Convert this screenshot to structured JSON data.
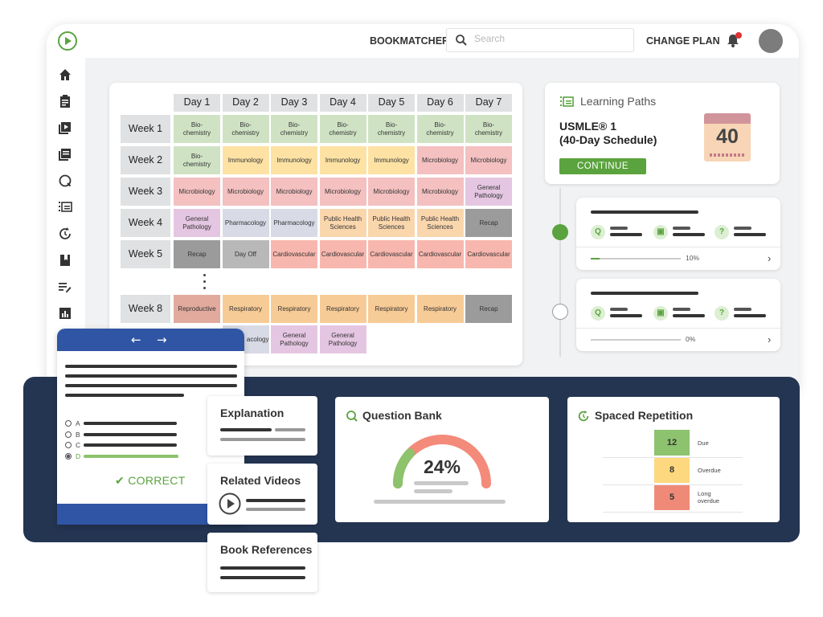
{
  "topbar": {
    "bookmatcher": "BOOKMATCHER",
    "search_placeholder": "Search",
    "change_plan": "CHANGE PLAN",
    "notifications": "1"
  },
  "sidebar": {
    "icons": [
      "home-icon",
      "notes-icon",
      "video-icon",
      "library-icon",
      "question-icon",
      "learning-paths-icon",
      "spaced-repetition-icon",
      "bookmark-icon",
      "edit-list-icon",
      "chart-icon"
    ]
  },
  "schedule": {
    "days": [
      "Day 1",
      "Day 2",
      "Day 3",
      "Day 4",
      "Day 5",
      "Day 6",
      "Day 7"
    ],
    "weeks": [
      {
        "label": "Week 1",
        "cells": [
          [
            "Bio-\nchemistry",
            "bio"
          ],
          [
            "Bio-\nchemistry",
            "bio"
          ],
          [
            "Bio-\nchemistry",
            "bio"
          ],
          [
            "Bio-\nchemistry",
            "bio"
          ],
          [
            "Bio-\nchemistry",
            "bio"
          ],
          [
            "Bio-\nchemistry",
            "bio"
          ],
          [
            "Bio-\nchemistry",
            "bio"
          ]
        ]
      },
      {
        "label": "Week 2",
        "cells": [
          [
            "Bio-\nchemistry",
            "bio"
          ],
          [
            "Immunology",
            "imm"
          ],
          [
            "Immunology",
            "imm"
          ],
          [
            "Immunology",
            "imm"
          ],
          [
            "Immunology",
            "imm"
          ],
          [
            "Microbiology",
            "mic"
          ],
          [
            "Microbiology",
            "mic"
          ]
        ]
      },
      {
        "label": "Week 3",
        "cells": [
          [
            "Microbiology",
            "mic"
          ],
          [
            "Microbiology",
            "mic"
          ],
          [
            "Microbiology",
            "mic"
          ],
          [
            "Microbiology",
            "mic"
          ],
          [
            "Microbiology",
            "mic"
          ],
          [
            "Microbiology",
            "mic"
          ],
          [
            "General\nPathology",
            "gp"
          ]
        ]
      },
      {
        "label": "Week 4",
        "cells": [
          [
            "General\nPathology",
            "gp"
          ],
          [
            "Pharmacology",
            "pha"
          ],
          [
            "Pharmacology",
            "pha"
          ],
          [
            "Public Health\nSciences",
            "phs"
          ],
          [
            "Public Health\nSciences",
            "phs"
          ],
          [
            "Public Health\nSciences",
            "phs"
          ],
          [
            "Recap",
            "rec"
          ]
        ]
      },
      {
        "label": "Week 5",
        "cells": [
          [
            "Recap",
            "rec"
          ],
          [
            "Day Off",
            "off"
          ],
          [
            "Cardiovascular",
            "car"
          ],
          [
            "Cardiovascular",
            "car"
          ],
          [
            "Cardiovascular",
            "car"
          ],
          [
            "Cardiovascular",
            "car"
          ],
          [
            "Cardiovascular",
            "car"
          ]
        ]
      },
      {
        "label": "Week 8",
        "cells": [
          [
            "Reproductive",
            "rep"
          ],
          [
            "Respiratory",
            "res"
          ],
          [
            "Respiratory",
            "res"
          ],
          [
            "Respiratory",
            "res"
          ],
          [
            "Respiratory",
            "res"
          ],
          [
            "Respiratory",
            "res"
          ],
          [
            "Recap",
            "rec"
          ]
        ]
      },
      {
        "label": "",
        "cells": [
          [
            "",
            ""
          ],
          [
            "acology",
            "pha"
          ],
          [
            "General\nPathology",
            "gp"
          ],
          [
            "General\nPathology",
            "gp"
          ]
        ]
      }
    ]
  },
  "learning_paths": {
    "title": "Learning Paths",
    "plan": "USMLE® 1\n(40-Day Schedule)",
    "continue": "CONTINUE",
    "calendar_number": "40"
  },
  "path_items": [
    {
      "progress_label": "10%",
      "progress": 0.1,
      "status": "active"
    },
    {
      "progress_label": "0%",
      "progress": 0.0,
      "status": "pending"
    }
  ],
  "quiz": {
    "options": [
      "A",
      "B",
      "C",
      "D"
    ],
    "selected": "D",
    "result": "CORRECT"
  },
  "mini_cards": {
    "explanation": "Explanation",
    "related_videos": "Related Videos",
    "book_references": "Book References"
  },
  "question_bank": {
    "title": "Question Bank",
    "value": "24%",
    "percent": 24
  },
  "spaced_repetition": {
    "title": "Spaced Repetition",
    "rows": [
      {
        "count": "12",
        "label": "Due",
        "color": "#8dc26f"
      },
      {
        "count": "8",
        "label": "Overdue",
        "color": "#fdd87e"
      },
      {
        "count": "5",
        "label": "Long\noverdue",
        "color": "#f08a78"
      }
    ]
  }
}
